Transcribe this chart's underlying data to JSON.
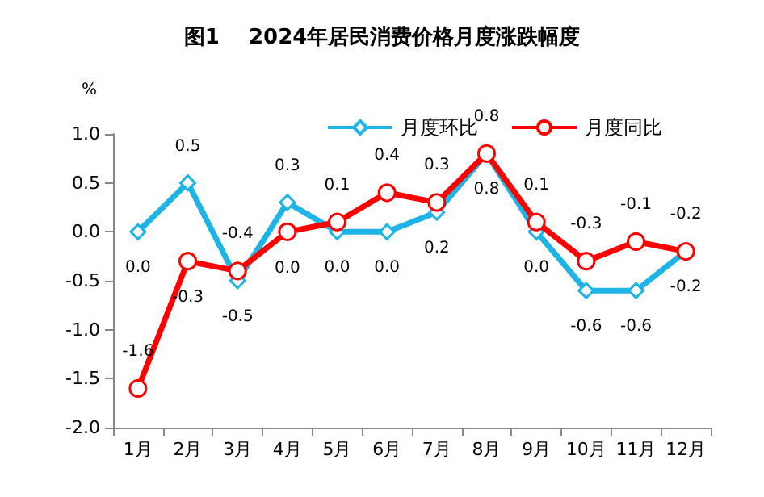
{
  "chart_data": {
    "type": "line",
    "title": "图1    2024年居民消费价格月度涨跌幅度",
    "ylabel": "%",
    "categories": [
      "1月",
      "2月",
      "3月",
      "4月",
      "5月",
      "6月",
      "7月",
      "8月",
      "9月",
      "10月",
      "11月",
      "12月"
    ],
    "series": [
      {
        "name": "月度环比",
        "color": "#1fb4e6",
        "marker": "diamond",
        "values": [
          0.0,
          0.5,
          -0.5,
          0.3,
          0.0,
          0.0,
          0.2,
          0.8,
          0.0,
          -0.6,
          -0.6,
          -0.2
        ],
        "value_labels": [
          "0.0",
          "0.5",
          "-0.5",
          "0.3",
          "0.0",
          "0.0",
          "0.2",
          "0.8",
          "0.0",
          "-0.6",
          "-0.6",
          "-0.2"
        ]
      },
      {
        "name": "月度同比",
        "color": "#ff0000",
        "marker": "circle",
        "values": [
          -1.6,
          -0.3,
          -0.4,
          0.0,
          0.1,
          0.4,
          0.3,
          0.8,
          0.1,
          -0.3,
          -0.1,
          -0.2
        ],
        "value_labels": [
          "-1.6",
          "-0.3",
          "-0.4",
          "0.0",
          "0.1",
          "0.4",
          "0.3",
          "0.8",
          "0.1",
          "-0.3",
          "-0.1",
          "-0.2"
        ]
      }
    ],
    "ylim": [
      -2.0,
      1.0
    ],
    "yticks": [
      {
        "value": -2,
        "label": "-2.0"
      },
      {
        "value": -1.5,
        "label": "-1.5"
      },
      {
        "value": -1,
        "label": "-1.0"
      },
      {
        "value": -0.5,
        "label": "-0.5"
      },
      {
        "value": 0,
        "label": "0.0"
      },
      {
        "value": 0.5,
        "label": "0.5"
      },
      {
        "value": 1,
        "label": "1.0"
      }
    ],
    "grid": false,
    "legend": "top right",
    "line_style": "solid"
  }
}
